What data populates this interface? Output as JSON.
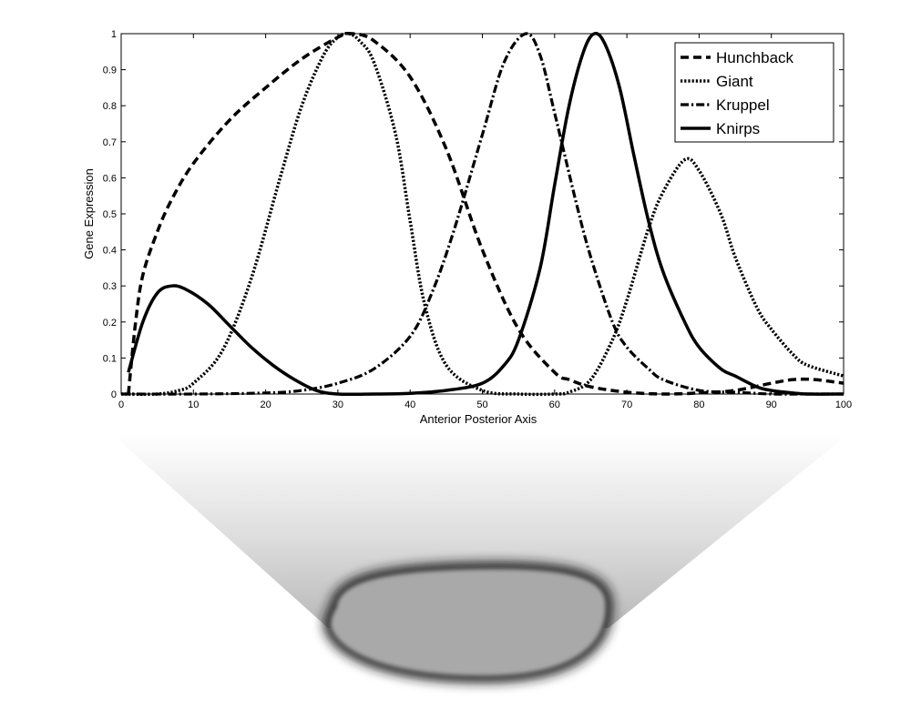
{
  "chart_data": {
    "type": "line",
    "xlabel": "Anterior Posterior Axis",
    "ylabel": "Gene Expression",
    "xlim": [
      0,
      100
    ],
    "ylim": [
      0,
      1
    ],
    "xticks": [
      0,
      10,
      20,
      30,
      40,
      50,
      60,
      70,
      80,
      90,
      100
    ],
    "yticks": [
      0,
      0.1,
      0.2,
      0.3,
      0.4,
      0.5,
      0.6,
      0.7,
      0.8,
      0.9,
      1
    ],
    "ytick_labels": [
      "0",
      "0.1",
      "0.2",
      "0.3",
      "0.4",
      "0.5",
      "0.6",
      "0.7",
      "0.8",
      "0.9",
      "1"
    ],
    "grid": false,
    "legend_position": "top-right",
    "series": [
      {
        "name": "Hunchback",
        "style": "dashed",
        "x": [
          1,
          2,
          3,
          5,
          7,
          10,
          15,
          20,
          25,
          30,
          32,
          35,
          40,
          45,
          50,
          55,
          60,
          62,
          65,
          70,
          75,
          80,
          85,
          90,
          93,
          96,
          100
        ],
        "y": [
          0.0,
          0.2,
          0.33,
          0.45,
          0.54,
          0.64,
          0.76,
          0.85,
          0.93,
          0.99,
          1.0,
          0.98,
          0.88,
          0.68,
          0.4,
          0.18,
          0.06,
          0.04,
          0.02,
          0.005,
          0.0,
          0.003,
          0.01,
          0.03,
          0.04,
          0.04,
          0.03
        ]
      },
      {
        "name": "Giant",
        "style": "dotted",
        "x": [
          0,
          5,
          8,
          10,
          14,
          18,
          22,
          25,
          28,
          30,
          31.5,
          33,
          35,
          38,
          40,
          42,
          45,
          50,
          55,
          60,
          62,
          65,
          68,
          70,
          73,
          75,
          78,
          80,
          83,
          85,
          88,
          90,
          93,
          95,
          100
        ],
        "y": [
          0.0,
          0.0,
          0.01,
          0.03,
          0.12,
          0.32,
          0.6,
          0.8,
          0.94,
          0.99,
          1.0,
          0.98,
          0.92,
          0.72,
          0.48,
          0.25,
          0.08,
          0.01,
          0.0,
          0.0,
          0.005,
          0.04,
          0.15,
          0.26,
          0.46,
          0.56,
          0.65,
          0.62,
          0.5,
          0.38,
          0.24,
          0.18,
          0.11,
          0.08,
          0.05
        ]
      },
      {
        "name": "Kruppel",
        "style": "dashdot",
        "x": [
          0,
          10,
          20,
          25,
          30,
          35,
          40,
          43,
          46,
          50,
          53,
          56,
          58,
          60,
          63,
          65,
          68,
          70,
          73,
          75,
          80,
          85,
          90,
          95,
          100
        ],
        "y": [
          0.0,
          0.0,
          0.003,
          0.01,
          0.03,
          0.07,
          0.16,
          0.28,
          0.45,
          0.72,
          0.92,
          1.0,
          0.94,
          0.78,
          0.53,
          0.38,
          0.2,
          0.13,
          0.07,
          0.04,
          0.01,
          0.005,
          0.0,
          0.0,
          0.0
        ]
      },
      {
        "name": "Knirps",
        "style": "solid",
        "x": [
          1,
          3,
          5,
          7,
          9,
          12,
          15,
          18,
          21,
          24,
          27,
          30,
          35,
          40,
          45,
          50,
          53,
          55,
          58,
          60,
          62,
          64,
          65.5,
          67,
          69,
          71,
          73,
          75,
          78,
          80,
          83,
          85,
          88,
          90,
          93,
          95,
          100
        ],
        "y": [
          0.06,
          0.2,
          0.28,
          0.3,
          0.29,
          0.25,
          0.19,
          0.13,
          0.08,
          0.04,
          0.01,
          0.0,
          0.0,
          0.002,
          0.01,
          0.03,
          0.08,
          0.15,
          0.35,
          0.58,
          0.8,
          0.95,
          1.0,
          0.97,
          0.85,
          0.66,
          0.48,
          0.34,
          0.2,
          0.13,
          0.07,
          0.05,
          0.02,
          0.01,
          0.003,
          0.0,
          0.0
        ]
      }
    ]
  }
}
